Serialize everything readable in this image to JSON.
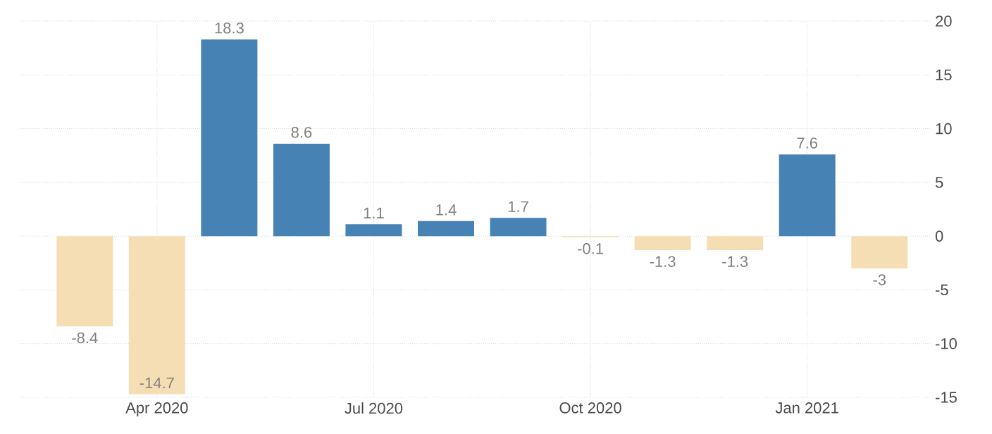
{
  "chart_data": {
    "type": "bar",
    "categories": [
      null,
      "Apr 2020",
      null,
      null,
      "Jul 2020",
      null,
      null,
      "Oct 2020",
      null,
      null,
      "Jan 2021",
      null
    ],
    "values": [
      -8.4,
      -14.7,
      18.3,
      8.6,
      1.1,
      1.4,
      1.7,
      -0.1,
      -1.3,
      -1.3,
      7.6,
      -3
    ],
    "colors": [
      "#f5deb3",
      "#f5deb3",
      "#4682b4",
      "#4682b4",
      "#4682b4",
      "#4682b4",
      "#4682b4",
      "#f5deb3",
      "#f5deb3",
      "#f5deb3",
      "#4682b4",
      "#f5deb3"
    ],
    "ylim": [
      -15,
      20
    ],
    "yticks": [
      -15,
      -10,
      -5,
      0,
      5,
      10,
      15,
      20
    ],
    "grid": true,
    "data_labels": true
  }
}
